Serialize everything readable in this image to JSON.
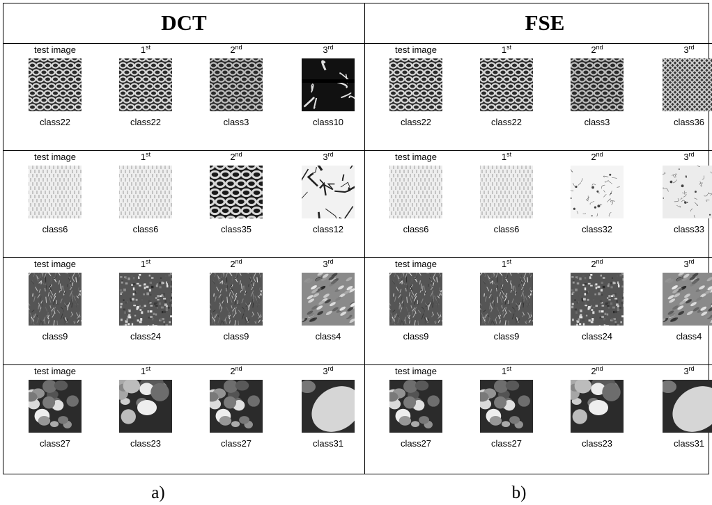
{
  "panels": [
    {
      "title": "DCT",
      "caption": "a)",
      "rows": [
        {
          "cells": [
            {
              "rank": "test image",
              "sup": "",
              "cls": "class22",
              "tex": "mesh"
            },
            {
              "rank": "1",
              "sup": "st",
              "cls": "class22",
              "tex": "mesh"
            },
            {
              "rank": "2",
              "sup": "nd",
              "cls": "class3",
              "tex": "mesh2"
            },
            {
              "rank": "3",
              "sup": "rd",
              "cls": "class10",
              "tex": "cells"
            }
          ]
        },
        {
          "cells": [
            {
              "rank": "test image",
              "sup": "",
              "cls": "class6",
              "tex": "weave"
            },
            {
              "rank": "1",
              "sup": "st",
              "cls": "class6",
              "tex": "weave"
            },
            {
              "rank": "2",
              "sup": "nd",
              "cls": "class35",
              "tex": "darkmesh"
            },
            {
              "rank": "3",
              "sup": "rd",
              "cls": "class12",
              "tex": "marble"
            }
          ]
        },
        {
          "cells": [
            {
              "rank": "test image",
              "sup": "",
              "cls": "class9",
              "tex": "grass"
            },
            {
              "rank": "1",
              "sup": "st",
              "cls": "class24",
              "tex": "gravel"
            },
            {
              "rank": "2",
              "sup": "nd",
              "cls": "class9",
              "tex": "grass"
            },
            {
              "rank": "3",
              "sup": "rd",
              "cls": "class4",
              "tex": "ripple"
            }
          ]
        },
        {
          "cells": [
            {
              "rank": "test image",
              "sup": "",
              "cls": "class27",
              "tex": "pebbles"
            },
            {
              "rank": "1",
              "sup": "st",
              "cls": "class23",
              "tex": "stones"
            },
            {
              "rank": "2",
              "sup": "nd",
              "cls": "class27",
              "tex": "pebbles"
            },
            {
              "rank": "3",
              "sup": "rd",
              "cls": "class31",
              "tex": "boulder"
            }
          ]
        }
      ]
    },
    {
      "title": "FSE",
      "caption": "b)",
      "rows": [
        {
          "cells": [
            {
              "rank": "test image",
              "sup": "",
              "cls": "class22",
              "tex": "mesh"
            },
            {
              "rank": "1",
              "sup": "st",
              "cls": "class22",
              "tex": "mesh"
            },
            {
              "rank": "2",
              "sup": "nd",
              "cls": "class3",
              "tex": "mesh2"
            },
            {
              "rank": "3",
              "sup": "rd",
              "cls": "class36",
              "tex": "diamond"
            }
          ]
        },
        {
          "cells": [
            {
              "rank": "test image",
              "sup": "",
              "cls": "class6",
              "tex": "weave"
            },
            {
              "rank": "1",
              "sup": "st",
              "cls": "class6",
              "tex": "weave"
            },
            {
              "rank": "2",
              "sup": "nd",
              "cls": "class32",
              "tex": "speckle"
            },
            {
              "rank": "3",
              "sup": "rd",
              "cls": "class33",
              "tex": "speckle2"
            }
          ]
        },
        {
          "cells": [
            {
              "rank": "test image",
              "sup": "",
              "cls": "class9",
              "tex": "grass"
            },
            {
              "rank": "1",
              "sup": "st",
              "cls": "class9",
              "tex": "grass"
            },
            {
              "rank": "2",
              "sup": "nd",
              "cls": "class24",
              "tex": "gravel"
            },
            {
              "rank": "3",
              "sup": "rd",
              "cls": "class4",
              "tex": "ripple"
            }
          ]
        },
        {
          "cells": [
            {
              "rank": "test image",
              "sup": "",
              "cls": "class27",
              "tex": "pebbles"
            },
            {
              "rank": "1",
              "sup": "st",
              "cls": "class27",
              "tex": "pebbles"
            },
            {
              "rank": "2",
              "sup": "nd",
              "cls": "class23",
              "tex": "stones"
            },
            {
              "rank": "3",
              "sup": "rd",
              "cls": "class31",
              "tex": "boulder"
            }
          ]
        }
      ]
    }
  ]
}
